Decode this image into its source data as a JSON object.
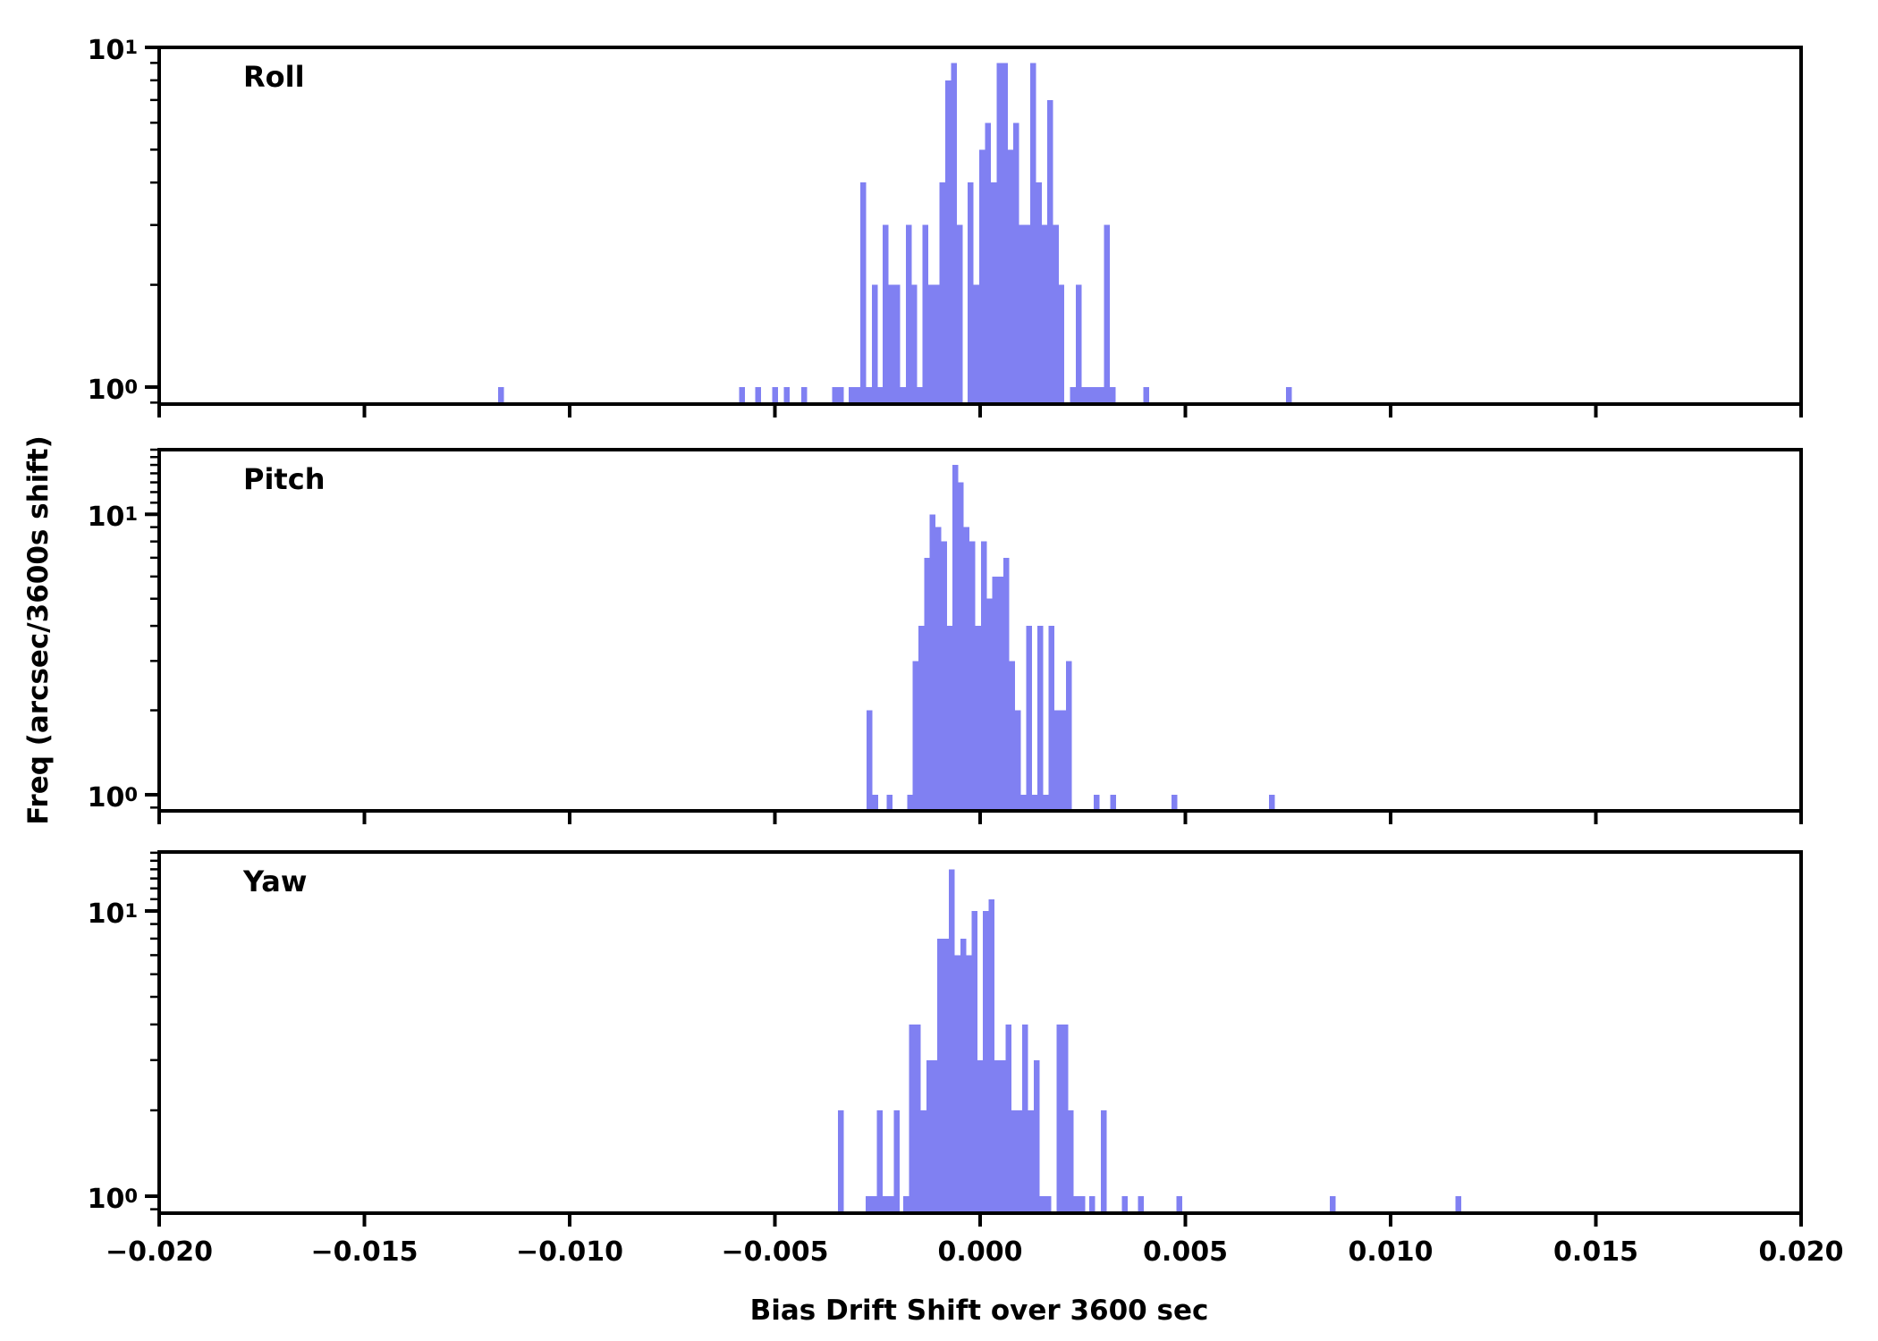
{
  "figure": {
    "xlabel": "Bias Drift Shift over 3600 sec",
    "ylabel": "Freq (arcsec/3600s shift)",
    "background": "#ffffff",
    "bar_color": "#8080f2",
    "axis_color": "#000000"
  },
  "axes": {
    "x_tick_labels": [
      "−0.020",
      "−0.015",
      "−0.010",
      "−0.005",
      "0.000",
      "0.005",
      "0.010",
      "0.015",
      "0.020"
    ],
    "x_tick_values": [
      -0.02,
      -0.015,
      -0.01,
      -0.005,
      0.0,
      0.005,
      0.01,
      0.015,
      0.02
    ],
    "y_major_top": {
      "base": "10",
      "exp": "1",
      "value": 10
    },
    "y_major_bottom": {
      "base": "10",
      "exp": "0",
      "value": 1
    },
    "y_minor_values": [
      0.9,
      2,
      3,
      4,
      5,
      6,
      7,
      8,
      9,
      11,
      12,
      13,
      14,
      15,
      16,
      17
    ],
    "grid": "off",
    "legend": "none"
  },
  "chart_data": [
    {
      "type": "bar",
      "title": "Roll",
      "yscale": "log",
      "xlim": [
        -0.02,
        0.02
      ],
      "ylim": [
        0.891,
        10
      ],
      "bin_width": 0.000138,
      "x": [
        -0.01167,
        -0.0058,
        -0.00541,
        -0.00499,
        -0.00471,
        -0.00429,
        -0.00353,
        -0.00339,
        -0.00313,
        -0.00299,
        -0.00285,
        -0.00271,
        -0.00257,
        -0.00243,
        -0.0023,
        -0.00216,
        -0.00202,
        -0.00188,
        -0.00174,
        -0.00161,
        -0.00147,
        -0.00133,
        -0.00119,
        -0.00105,
        -0.00092,
        -0.00078,
        -0.00064,
        -0.0005,
        -0.00023,
        -9e-05,
        5e-05,
        0.00019,
        0.00033,
        0.00047,
        0.0006,
        0.00074,
        0.00088,
        0.00102,
        0.00116,
        0.00129,
        0.00143,
        0.00157,
        0.00171,
        0.00185,
        0.00198,
        0.00226,
        0.0024,
        0.00254,
        0.00267,
        0.00281,
        0.00295,
        0.00309,
        0.00323,
        0.00405,
        0.00752
      ],
      "counts": [
        1,
        1,
        1,
        1,
        1,
        1,
        1,
        1,
        1,
        1,
        4,
        1,
        2,
        1,
        3,
        2,
        2,
        1,
        3,
        2,
        1,
        3,
        2,
        2,
        4,
        8,
        9,
        3,
        4,
        2,
        5,
        6,
        4,
        9,
        9,
        5,
        6,
        3,
        3,
        9,
        4,
        3,
        7,
        3,
        2,
        1,
        2,
        1,
        1,
        1,
        1,
        3,
        1,
        1,
        1
      ]
    },
    {
      "type": "bar",
      "title": "Pitch",
      "yscale": "log",
      "xlim": [
        -0.02,
        0.02
      ],
      "ylim": [
        0.876,
        17
      ],
      "bin_width": 0.000138,
      "x": [
        -0.0027,
        -0.00256,
        -0.00221,
        -0.00171,
        -0.00157,
        -0.00143,
        -0.00129,
        -0.00116,
        -0.00102,
        -0.00088,
        -0.00074,
        -0.0006,
        -0.00047,
        -0.00033,
        -0.00019,
        -5e-05,
        9e-05,
        0.00023,
        0.00036,
        0.0005,
        0.00064,
        0.00078,
        0.00092,
        0.00105,
        0.00119,
        0.00133,
        0.00147,
        0.00161,
        0.00174,
        0.00188,
        0.00202,
        0.00216,
        0.00284,
        0.00324,
        0.00473,
        0.00711
      ],
      "counts": [
        2,
        1,
        1,
        1,
        3,
        4,
        7,
        10,
        9,
        8,
        4,
        15,
        13,
        9,
        8,
        4,
        8,
        5,
        6,
        6,
        7,
        3,
        2,
        1,
        4,
        1,
        4,
        1,
        4,
        2,
        2,
        3,
        1,
        1,
        1,
        1
      ]
    },
    {
      "type": "bar",
      "title": "Yaw",
      "yscale": "log",
      "xlim": [
        -0.02,
        0.02
      ],
      "ylim": [
        0.872,
        16.1
      ],
      "bin_width": 0.000138,
      "x": [
        -0.00339,
        -0.00272,
        -0.00259,
        -0.00245,
        -0.00231,
        -0.00217,
        -0.00203,
        -0.0018,
        -0.00166,
        -0.00152,
        -0.00138,
        -0.00124,
        -0.0011,
        -0.00097,
        -0.00083,
        -0.00069,
        -0.00055,
        -0.00041,
        -0.00028,
        -0.00014,
        0.0,
        0.00014,
        0.00028,
        0.00041,
        0.00055,
        0.00069,
        0.00083,
        0.00097,
        0.0011,
        0.00124,
        0.00138,
        0.00152,
        0.00166,
        0.00193,
        0.00207,
        0.00221,
        0.00235,
        0.00249,
        0.00273,
        0.00301,
        0.00352,
        0.00392,
        0.00485,
        0.00859,
        0.01165
      ],
      "counts": [
        2,
        1,
        1,
        2,
        1,
        1,
        2,
        1,
        4,
        4,
        2,
        3,
        3,
        8,
        8,
        14,
        7,
        8,
        7,
        10,
        3,
        10,
        11,
        3,
        3,
        4,
        2,
        2,
        4,
        2,
        3,
        1,
        1,
        4,
        4,
        2,
        1,
        1,
        1,
        2,
        1,
        1,
        1,
        1,
        1
      ]
    }
  ]
}
